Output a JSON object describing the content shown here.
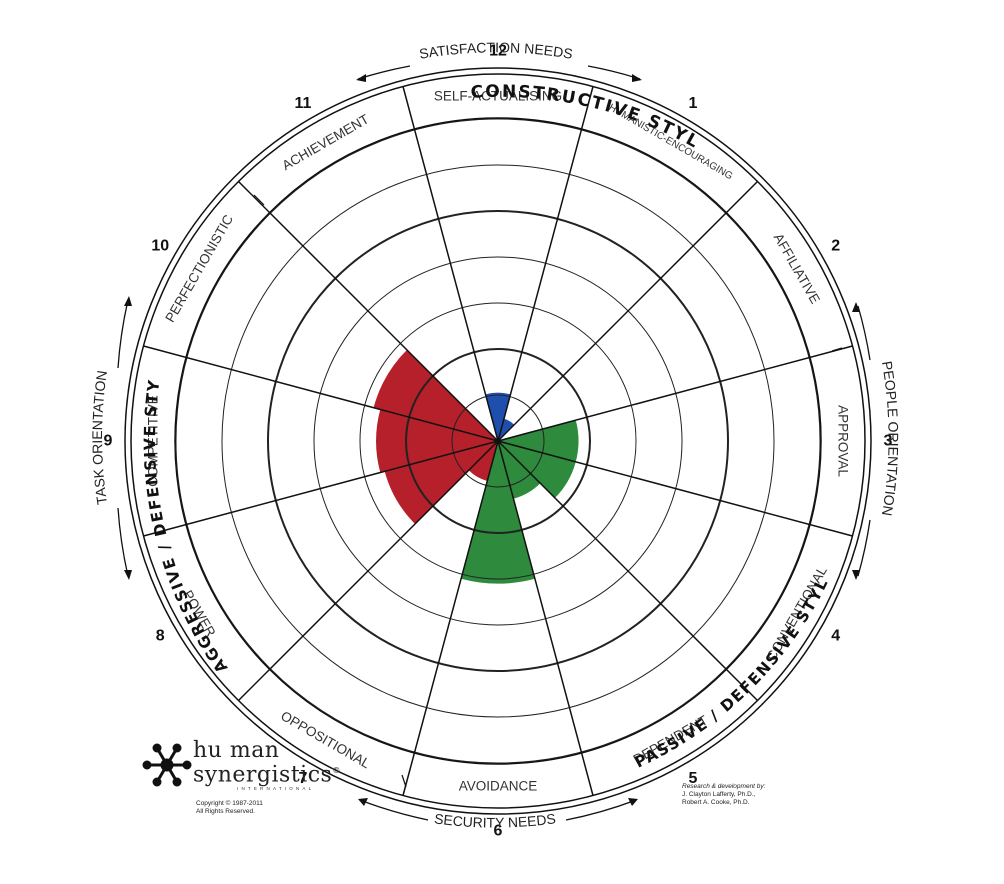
{
  "inventory": {
    "title_top": "CONSTRUCTIVE STYLES",
    "title_left": "AGGRESSIVE / DEFENSIVE STYLES",
    "title_right": "PASSIVE / DEFENSIVE STYLES",
    "axis_top": "SATISFACTION NEEDS",
    "axis_bottom": "SECURITY NEEDS",
    "axis_left": "TASK ORIENTATION",
    "axis_right": "PEOPLE ORIENTATION"
  },
  "colors": {
    "constructive": "#1f4fae",
    "passive_defensive": "#2e8a3c",
    "aggressive_defensive": "#b5202a",
    "lines": "#111111",
    "rings": "#222222"
  },
  "segments": [
    {
      "number": "1",
      "label": "HUMANISTIC-ENCOURAGING",
      "cluster": "constructive",
      "level": 0.5
    },
    {
      "number": "2",
      "label": "AFFILIATIVE",
      "cluster": "constructive",
      "level": 0
    },
    {
      "number": "3",
      "label": "APPROVAL",
      "cluster": "passive_defensive",
      "level": 1.75
    },
    {
      "number": "4",
      "label": "CONVENTIONAL",
      "cluster": "passive_defensive",
      "level": 1.75
    },
    {
      "number": "5",
      "label": "DEPENDENT",
      "cluster": "passive_defensive",
      "level": 1.3
    },
    {
      "number": "6",
      "label": "AVOIDANCE",
      "cluster": "passive_defensive",
      "level": 3.1
    },
    {
      "number": "7",
      "label": "OPPOSITIONAL",
      "cluster": "aggressive_defensive",
      "level": 0.9
    },
    {
      "number": "8",
      "label": "POWER",
      "cluster": "aggressive_defensive",
      "level": 2.55
    },
    {
      "number": "9",
      "label": "COMPETITIVE",
      "cluster": "aggressive_defensive",
      "level": 2.65
    },
    {
      "number": "10",
      "label": "PERFECTIONISTIC",
      "cluster": "aggressive_defensive",
      "level": 2.8
    },
    {
      "number": "11",
      "label": "ACHIEVEMENT",
      "cluster": "constructive",
      "level": 0
    },
    {
      "number": "12",
      "label": "SELF-ACTUALISING",
      "cluster": "constructive",
      "level": 1.05
    }
  ],
  "logo": {
    "line1": "hu man",
    "line2": "synergistics",
    "registered": "®",
    "subline": "INTERNATIONAL"
  },
  "copyright": {
    "line1": "Copyright  ©  1987-2011",
    "line2": "All Rights Reserved."
  },
  "credits": {
    "line1": "Research & development by:",
    "line2": "J. Clayton Lafferty, Ph.D.,",
    "line3": "Robert A. Cooke, Ph.D."
  }
}
